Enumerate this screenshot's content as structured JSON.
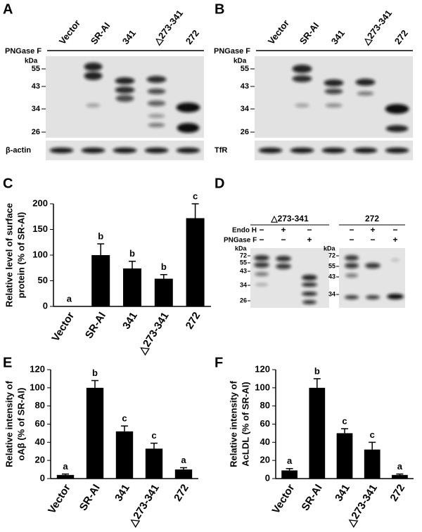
{
  "panel_labels": [
    "A",
    "B",
    "C",
    "D",
    "E",
    "F"
  ],
  "blots": [
    {
      "lanes": [
        "Vector",
        "SR-AI",
        "341",
        "△273-341",
        "272"
      ],
      "treatment": "PNGase F",
      "kda_unit": "kDa",
      "markers": [
        "55",
        "43",
        "34",
        "26"
      ],
      "loading_control": "β-actin"
    },
    {
      "lanes": [
        "Vector",
        "SR-AI",
        "341",
        "△273-341",
        "272"
      ],
      "treatment": "PNGase F",
      "kda_unit": "kDa",
      "markers": [
        "55",
        "43",
        "34",
        "26"
      ],
      "loading_control": "TfR"
    }
  ],
  "blot_d": {
    "row_labels": [
      "Endo H",
      "PNGase F"
    ],
    "groups": [
      {
        "title": "△273-341",
        "endo_h": [
          "−",
          "+",
          "−"
        ],
        "pngase_f": [
          "−",
          "−",
          "+"
        ],
        "kda_unit": "kDa",
        "markers": [
          "72",
          "55",
          "43",
          "34",
          "26"
        ]
      },
      {
        "title": "272",
        "endo_h": [
          "−",
          "+",
          "−"
        ],
        "pngase_f": [
          "−",
          "−",
          "+"
        ],
        "kda_unit": "kDa",
        "markers": [
          "72",
          "55",
          "43",
          "34"
        ]
      }
    ]
  },
  "chart_data": [
    {
      "type": "bar",
      "ylabel": [
        "Relative level of surface",
        "protein (% of SR-AI)"
      ],
      "categories": [
        "Vector",
        "SR-AI",
        "341",
        "△273-341",
        "272"
      ],
      "values": [
        0,
        100,
        74,
        54,
        172
      ],
      "errors": [
        0,
        22,
        14,
        8,
        28
      ],
      "letters": [
        "a",
        "b",
        "b",
        "b",
        "c"
      ],
      "color": "#000000",
      "ylim": [
        0,
        200
      ],
      "yticks": [
        0,
        50,
        100,
        150,
        200
      ]
    },
    {
      "type": "bar",
      "ylabel": [
        "Relative intensity of",
        "oAβ (% of SR-AI)"
      ],
      "categories": [
        "Vector",
        "SR-AI",
        "341",
        "△273-341",
        "272"
      ],
      "values": [
        4,
        100,
        52,
        33,
        10
      ],
      "errors": [
        1,
        8,
        6,
        6,
        2
      ],
      "letters": [
        "a",
        "b",
        "c",
        "c",
        "a"
      ],
      "color": "#000000",
      "ylim": [
        0,
        120
      ],
      "yticks": [
        0,
        20,
        40,
        60,
        80,
        100,
        120
      ]
    },
    {
      "type": "bar",
      "ylabel": [
        "Relative intensity of",
        "AcLDL (% of SR-AI)"
      ],
      "categories": [
        "Vector",
        "SR-AI",
        "341",
        "△273-341",
        "272"
      ],
      "values": [
        9,
        100,
        50,
        32,
        4
      ],
      "errors": [
        2,
        10,
        5,
        8,
        1
      ],
      "letters": [
        "a",
        "b",
        "c",
        "c",
        "a"
      ],
      "color": "#000000",
      "ylim": [
        0,
        120
      ],
      "yticks": [
        0,
        20,
        40,
        60,
        80,
        100,
        120
      ]
    }
  ]
}
